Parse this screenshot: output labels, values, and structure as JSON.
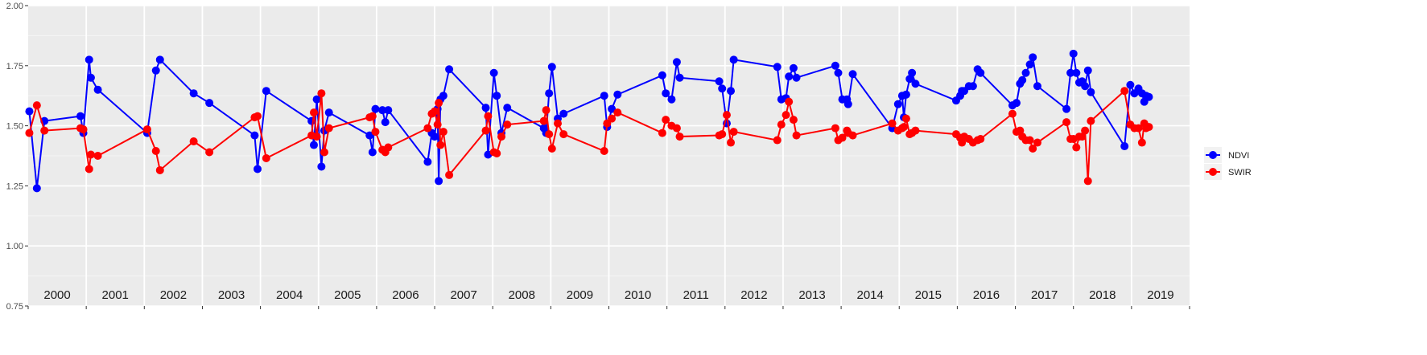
{
  "chart_data": {
    "type": "line",
    "title": "",
    "xlabel": "",
    "ylabel": "",
    "ylim": [
      0.75,
      2.0
    ],
    "xlim": [
      2000,
      2020
    ],
    "y_ticks": [
      "0.75",
      "1.00",
      "1.25",
      "1.50",
      "1.75",
      "2.00"
    ],
    "year_labels": [
      "2000",
      "2001",
      "2002",
      "2003",
      "2004",
      "2005",
      "2006",
      "2007",
      "2008",
      "2009",
      "2010",
      "2011",
      "2012",
      "2013",
      "2014",
      "2015",
      "2016",
      "2017",
      "2018",
      "2019"
    ],
    "grid": true,
    "background": "#ebebeb",
    "legend_position": "right",
    "series": [
      {
        "name": "NDVI",
        "color": "#0000ff",
        "points": [
          [
            2000.02,
            1.56
          ],
          [
            2000.15,
            1.24
          ],
          [
            2000.28,
            1.52
          ],
          [
            2000.9,
            1.54
          ],
          [
            2000.95,
            1.47
          ],
          [
            2001.05,
            1.775
          ],
          [
            2001.08,
            1.7
          ],
          [
            2001.2,
            1.65
          ],
          [
            2002.05,
            1.47
          ],
          [
            2002.2,
            1.73
          ],
          [
            2002.27,
            1.775
          ],
          [
            2002.85,
            1.635
          ],
          [
            2003.12,
            1.595
          ],
          [
            2003.9,
            1.46
          ],
          [
            2003.95,
            1.32
          ],
          [
            2004.1,
            1.645
          ],
          [
            2004.88,
            1.52
          ],
          [
            2004.92,
            1.42
          ],
          [
            2004.97,
            1.61
          ],
          [
            2005.05,
            1.33
          ],
          [
            2005.1,
            1.48
          ],
          [
            2005.18,
            1.555
          ],
          [
            2005.88,
            1.46
          ],
          [
            2005.93,
            1.39
          ],
          [
            2005.98,
            1.57
          ],
          [
            2006.1,
            1.565
          ],
          [
            2006.15,
            1.515
          ],
          [
            2006.2,
            1.565
          ],
          [
            2006.88,
            1.35
          ],
          [
            2006.95,
            1.47
          ],
          [
            2007.0,
            1.455
          ],
          [
            2007.05,
            1.57
          ],
          [
            2007.07,
            1.27
          ],
          [
            2007.1,
            1.61
          ],
          [
            2007.15,
            1.625
          ],
          [
            2007.25,
            1.735
          ],
          [
            2007.88,
            1.575
          ],
          [
            2007.92,
            1.38
          ],
          [
            2008.02,
            1.72
          ],
          [
            2008.07,
            1.625
          ],
          [
            2008.15,
            1.47
          ],
          [
            2008.25,
            1.575
          ],
          [
            2008.88,
            1.49
          ],
          [
            2008.92,
            1.47
          ],
          [
            2008.97,
            1.635
          ],
          [
            2009.02,
            1.745
          ],
          [
            2009.12,
            1.53
          ],
          [
            2009.22,
            1.55
          ],
          [
            2009.92,
            1.625
          ],
          [
            2009.97,
            1.495
          ],
          [
            2010.05,
            1.57
          ],
          [
            2010.15,
            1.63
          ],
          [
            2010.92,
            1.71
          ],
          [
            2010.98,
            1.635
          ],
          [
            2011.08,
            1.61
          ],
          [
            2011.17,
            1.765
          ],
          [
            2011.22,
            1.7
          ],
          [
            2011.9,
            1.685
          ],
          [
            2011.95,
            1.655
          ],
          [
            2012.03,
            1.51
          ],
          [
            2012.1,
            1.645
          ],
          [
            2012.15,
            1.775
          ],
          [
            2012.9,
            1.745
          ],
          [
            2012.97,
            1.61
          ],
          [
            2013.05,
            1.615
          ],
          [
            2013.1,
            1.705
          ],
          [
            2013.18,
            1.74
          ],
          [
            2013.23,
            1.7
          ],
          [
            2013.9,
            1.75
          ],
          [
            2013.95,
            1.72
          ],
          [
            2014.02,
            1.61
          ],
          [
            2014.1,
            1.61
          ],
          [
            2014.12,
            1.59
          ],
          [
            2014.2,
            1.715
          ],
          [
            2014.88,
            1.49
          ],
          [
            2014.98,
            1.59
          ],
          [
            2015.05,
            1.625
          ],
          [
            2015.08,
            1.535
          ],
          [
            2015.12,
            1.63
          ],
          [
            2015.18,
            1.695
          ],
          [
            2015.22,
            1.72
          ],
          [
            2015.28,
            1.675
          ],
          [
            2015.98,
            1.605
          ],
          [
            2016.05,
            1.625
          ],
          [
            2016.08,
            1.645
          ],
          [
            2016.12,
            1.645
          ],
          [
            2016.2,
            1.665
          ],
          [
            2016.27,
            1.665
          ],
          [
            2016.35,
            1.735
          ],
          [
            2016.4,
            1.72
          ],
          [
            2016.95,
            1.585
          ],
          [
            2017.02,
            1.595
          ],
          [
            2017.08,
            1.675
          ],
          [
            2017.12,
            1.69
          ],
          [
            2017.18,
            1.72
          ],
          [
            2017.25,
            1.755
          ],
          [
            2017.3,
            1.785
          ],
          [
            2017.38,
            1.665
          ],
          [
            2017.88,
            1.57
          ],
          [
            2017.95,
            1.72
          ],
          [
            2018.0,
            1.8
          ],
          [
            2018.05,
            1.72
          ],
          [
            2018.1,
            1.68
          ],
          [
            2018.15,
            1.685
          ],
          [
            2018.2,
            1.665
          ],
          [
            2018.25,
            1.73
          ],
          [
            2018.3,
            1.64
          ],
          [
            2018.88,
            1.415
          ],
          [
            2018.98,
            1.67
          ],
          [
            2019.05,
            1.635
          ],
          [
            2019.12,
            1.655
          ],
          [
            2019.18,
            1.635
          ],
          [
            2019.22,
            1.6
          ],
          [
            2019.25,
            1.625
          ],
          [
            2019.3,
            1.62
          ]
        ]
      },
      {
        "name": "SWIR",
        "color": "#ff0000",
        "points": [
          [
            2000.02,
            1.47
          ],
          [
            2000.15,
            1.585
          ],
          [
            2000.28,
            1.48
          ],
          [
            2000.9,
            1.49
          ],
          [
            2000.95,
            1.485
          ],
          [
            2001.05,
            1.32
          ],
          [
            2001.08,
            1.38
          ],
          [
            2001.2,
            1.375
          ],
          [
            2002.05,
            1.485
          ],
          [
            2002.2,
            1.395
          ],
          [
            2002.27,
            1.315
          ],
          [
            2002.85,
            1.435
          ],
          [
            2003.12,
            1.39
          ],
          [
            2003.9,
            1.535
          ],
          [
            2003.95,
            1.54
          ],
          [
            2004.1,
            1.365
          ],
          [
            2004.88,
            1.46
          ],
          [
            2004.92,
            1.555
          ],
          [
            2004.97,
            1.455
          ],
          [
            2005.05,
            1.635
          ],
          [
            2005.1,
            1.39
          ],
          [
            2005.18,
            1.49
          ],
          [
            2005.88,
            1.535
          ],
          [
            2005.93,
            1.54
          ],
          [
            2005.98,
            1.475
          ],
          [
            2006.1,
            1.4
          ],
          [
            2006.15,
            1.39
          ],
          [
            2006.2,
            1.41
          ],
          [
            2006.88,
            1.49
          ],
          [
            2006.95,
            1.55
          ],
          [
            2007.0,
            1.56
          ],
          [
            2007.05,
            1.505
          ],
          [
            2007.07,
            1.595
          ],
          [
            2007.1,
            1.42
          ],
          [
            2007.15,
            1.475
          ],
          [
            2007.25,
            1.295
          ],
          [
            2007.88,
            1.48
          ],
          [
            2007.92,
            1.54
          ],
          [
            2008.02,
            1.39
          ],
          [
            2008.07,
            1.385
          ],
          [
            2008.15,
            1.455
          ],
          [
            2008.25,
            1.505
          ],
          [
            2008.88,
            1.52
          ],
          [
            2008.92,
            1.565
          ],
          [
            2008.97,
            1.465
          ],
          [
            2009.02,
            1.405
          ],
          [
            2009.12,
            1.51
          ],
          [
            2009.22,
            1.465
          ],
          [
            2009.92,
            1.395
          ],
          [
            2009.97,
            1.51
          ],
          [
            2010.05,
            1.53
          ],
          [
            2010.15,
            1.555
          ],
          [
            2010.92,
            1.47
          ],
          [
            2010.98,
            1.525
          ],
          [
            2011.08,
            1.5
          ],
          [
            2011.17,
            1.49
          ],
          [
            2011.22,
            1.455
          ],
          [
            2011.9,
            1.46
          ],
          [
            2011.95,
            1.465
          ],
          [
            2012.03,
            1.545
          ],
          [
            2012.1,
            1.43
          ],
          [
            2012.15,
            1.475
          ],
          [
            2012.9,
            1.44
          ],
          [
            2012.97,
            1.505
          ],
          [
            2013.05,
            1.545
          ],
          [
            2013.1,
            1.6
          ],
          [
            2013.18,
            1.525
          ],
          [
            2013.23,
            1.46
          ],
          [
            2013.9,
            1.49
          ],
          [
            2013.95,
            1.44
          ],
          [
            2014.02,
            1.45
          ],
          [
            2014.1,
            1.48
          ],
          [
            2014.12,
            1.47
          ],
          [
            2014.2,
            1.46
          ],
          [
            2014.88,
            1.51
          ],
          [
            2014.98,
            1.48
          ],
          [
            2015.05,
            1.49
          ],
          [
            2015.08,
            1.495
          ],
          [
            2015.12,
            1.53
          ],
          [
            2015.18,
            1.465
          ],
          [
            2015.22,
            1.47
          ],
          [
            2015.28,
            1.48
          ],
          [
            2015.98,
            1.465
          ],
          [
            2016.05,
            1.45
          ],
          [
            2016.08,
            1.43
          ],
          [
            2016.12,
            1.455
          ],
          [
            2016.2,
            1.445
          ],
          [
            2016.27,
            1.43
          ],
          [
            2016.35,
            1.44
          ],
          [
            2016.4,
            1.445
          ],
          [
            2016.95,
            1.55
          ],
          [
            2017.02,
            1.475
          ],
          [
            2017.08,
            1.48
          ],
          [
            2017.12,
            1.455
          ],
          [
            2017.18,
            1.44
          ],
          [
            2017.25,
            1.44
          ],
          [
            2017.3,
            1.405
          ],
          [
            2017.38,
            1.43
          ],
          [
            2017.88,
            1.515
          ],
          [
            2017.95,
            1.445
          ],
          [
            2018.0,
            1.445
          ],
          [
            2018.05,
            1.41
          ],
          [
            2018.1,
            1.455
          ],
          [
            2018.15,
            1.455
          ],
          [
            2018.2,
            1.48
          ],
          [
            2018.25,
            1.27
          ],
          [
            2018.3,
            1.52
          ],
          [
            2018.88,
            1.645
          ],
          [
            2018.98,
            1.505
          ],
          [
            2019.05,
            1.49
          ],
          [
            2019.12,
            1.49
          ],
          [
            2019.18,
            1.43
          ],
          [
            2019.22,
            1.51
          ],
          [
            2019.25,
            1.49
          ],
          [
            2019.3,
            1.495
          ]
        ]
      }
    ]
  }
}
